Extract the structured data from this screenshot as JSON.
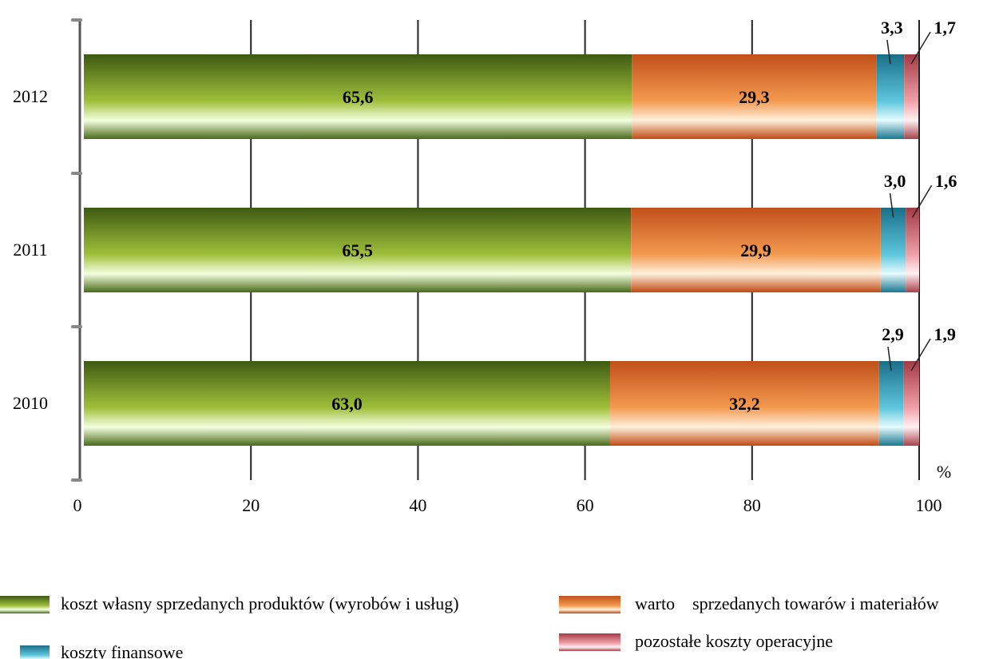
{
  "chart_data": {
    "type": "bar",
    "orientation": "horizontal",
    "stacked": true,
    "categories": [
      "2012",
      "2011",
      "2010"
    ],
    "series": [
      {
        "name": "koszt własny sprzedanych produktów (wyrobów i usług)",
        "values": [
          65.6,
          65.5,
          63.0
        ],
        "labels": [
          "65,6",
          "65,5",
          "63,0"
        ],
        "color": "#6b8e23"
      },
      {
        "name": "warto    sprzedanych towarów i materiałów",
        "values": [
          29.3,
          29.9,
          32.2
        ],
        "labels": [
          "29,3",
          "29,9",
          "32,2"
        ],
        "color": "#e8782a"
      },
      {
        "name": "koszty finansowe",
        "values": [
          3.3,
          3.0,
          2.9
        ],
        "labels": [
          "3,3",
          "3,0",
          "2,9"
        ],
        "color": "#2aa7c0"
      },
      {
        "name": "pozostałe koszty operacyjne",
        "values": [
          1.7,
          1.6,
          1.9
        ],
        "labels": [
          "1,7",
          "1,6",
          "1,9"
        ],
        "color": "#d9707a"
      }
    ],
    "xlim": [
      0,
      100
    ],
    "xticks": [
      "0",
      "20",
      "40",
      "60",
      "80",
      "100"
    ],
    "unit": "%",
    "grid": true,
    "legend_position": "bottom"
  }
}
